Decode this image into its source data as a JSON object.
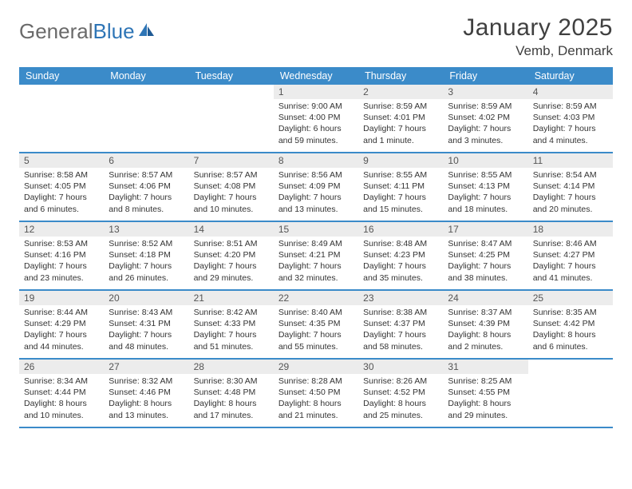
{
  "logo": {
    "text_general": "General",
    "text_blue": "Blue"
  },
  "title": {
    "month": "January 2025",
    "location": "Vemb, Denmark"
  },
  "colors": {
    "header_bg": "#3b8bc9",
    "daynum_bg": "#ececec",
    "logo_gray": "#6a6a6a",
    "logo_blue": "#2e75b6"
  },
  "day_names": [
    "Sunday",
    "Monday",
    "Tuesday",
    "Wednesday",
    "Thursday",
    "Friday",
    "Saturday"
  ],
  "weeks": [
    [
      {
        "empty": true
      },
      {
        "empty": true
      },
      {
        "empty": true
      },
      {
        "day": "1",
        "sunrise": "Sunrise: 9:00 AM",
        "sunset": "Sunset: 4:00 PM",
        "daylight": "Daylight: 6 hours and 59 minutes."
      },
      {
        "day": "2",
        "sunrise": "Sunrise: 8:59 AM",
        "sunset": "Sunset: 4:01 PM",
        "daylight": "Daylight: 7 hours and 1 minute."
      },
      {
        "day": "3",
        "sunrise": "Sunrise: 8:59 AM",
        "sunset": "Sunset: 4:02 PM",
        "daylight": "Daylight: 7 hours and 3 minutes."
      },
      {
        "day": "4",
        "sunrise": "Sunrise: 8:59 AM",
        "sunset": "Sunset: 4:03 PM",
        "daylight": "Daylight: 7 hours and 4 minutes."
      }
    ],
    [
      {
        "day": "5",
        "sunrise": "Sunrise: 8:58 AM",
        "sunset": "Sunset: 4:05 PM",
        "daylight": "Daylight: 7 hours and 6 minutes."
      },
      {
        "day": "6",
        "sunrise": "Sunrise: 8:57 AM",
        "sunset": "Sunset: 4:06 PM",
        "daylight": "Daylight: 7 hours and 8 minutes."
      },
      {
        "day": "7",
        "sunrise": "Sunrise: 8:57 AM",
        "sunset": "Sunset: 4:08 PM",
        "daylight": "Daylight: 7 hours and 10 minutes."
      },
      {
        "day": "8",
        "sunrise": "Sunrise: 8:56 AM",
        "sunset": "Sunset: 4:09 PM",
        "daylight": "Daylight: 7 hours and 13 minutes."
      },
      {
        "day": "9",
        "sunrise": "Sunrise: 8:55 AM",
        "sunset": "Sunset: 4:11 PM",
        "daylight": "Daylight: 7 hours and 15 minutes."
      },
      {
        "day": "10",
        "sunrise": "Sunrise: 8:55 AM",
        "sunset": "Sunset: 4:13 PM",
        "daylight": "Daylight: 7 hours and 18 minutes."
      },
      {
        "day": "11",
        "sunrise": "Sunrise: 8:54 AM",
        "sunset": "Sunset: 4:14 PM",
        "daylight": "Daylight: 7 hours and 20 minutes."
      }
    ],
    [
      {
        "day": "12",
        "sunrise": "Sunrise: 8:53 AM",
        "sunset": "Sunset: 4:16 PM",
        "daylight": "Daylight: 7 hours and 23 minutes."
      },
      {
        "day": "13",
        "sunrise": "Sunrise: 8:52 AM",
        "sunset": "Sunset: 4:18 PM",
        "daylight": "Daylight: 7 hours and 26 minutes."
      },
      {
        "day": "14",
        "sunrise": "Sunrise: 8:51 AM",
        "sunset": "Sunset: 4:20 PM",
        "daylight": "Daylight: 7 hours and 29 minutes."
      },
      {
        "day": "15",
        "sunrise": "Sunrise: 8:49 AM",
        "sunset": "Sunset: 4:21 PM",
        "daylight": "Daylight: 7 hours and 32 minutes."
      },
      {
        "day": "16",
        "sunrise": "Sunrise: 8:48 AM",
        "sunset": "Sunset: 4:23 PM",
        "daylight": "Daylight: 7 hours and 35 minutes."
      },
      {
        "day": "17",
        "sunrise": "Sunrise: 8:47 AM",
        "sunset": "Sunset: 4:25 PM",
        "daylight": "Daylight: 7 hours and 38 minutes."
      },
      {
        "day": "18",
        "sunrise": "Sunrise: 8:46 AM",
        "sunset": "Sunset: 4:27 PM",
        "daylight": "Daylight: 7 hours and 41 minutes."
      }
    ],
    [
      {
        "day": "19",
        "sunrise": "Sunrise: 8:44 AM",
        "sunset": "Sunset: 4:29 PM",
        "daylight": "Daylight: 7 hours and 44 minutes."
      },
      {
        "day": "20",
        "sunrise": "Sunrise: 8:43 AM",
        "sunset": "Sunset: 4:31 PM",
        "daylight": "Daylight: 7 hours and 48 minutes."
      },
      {
        "day": "21",
        "sunrise": "Sunrise: 8:42 AM",
        "sunset": "Sunset: 4:33 PM",
        "daylight": "Daylight: 7 hours and 51 minutes."
      },
      {
        "day": "22",
        "sunrise": "Sunrise: 8:40 AM",
        "sunset": "Sunset: 4:35 PM",
        "daylight": "Daylight: 7 hours and 55 minutes."
      },
      {
        "day": "23",
        "sunrise": "Sunrise: 8:38 AM",
        "sunset": "Sunset: 4:37 PM",
        "daylight": "Daylight: 7 hours and 58 minutes."
      },
      {
        "day": "24",
        "sunrise": "Sunrise: 8:37 AM",
        "sunset": "Sunset: 4:39 PM",
        "daylight": "Daylight: 8 hours and 2 minutes."
      },
      {
        "day": "25",
        "sunrise": "Sunrise: 8:35 AM",
        "sunset": "Sunset: 4:42 PM",
        "daylight": "Daylight: 8 hours and 6 minutes."
      }
    ],
    [
      {
        "day": "26",
        "sunrise": "Sunrise: 8:34 AM",
        "sunset": "Sunset: 4:44 PM",
        "daylight": "Daylight: 8 hours and 10 minutes."
      },
      {
        "day": "27",
        "sunrise": "Sunrise: 8:32 AM",
        "sunset": "Sunset: 4:46 PM",
        "daylight": "Daylight: 8 hours and 13 minutes."
      },
      {
        "day": "28",
        "sunrise": "Sunrise: 8:30 AM",
        "sunset": "Sunset: 4:48 PM",
        "daylight": "Daylight: 8 hours and 17 minutes."
      },
      {
        "day": "29",
        "sunrise": "Sunrise: 8:28 AM",
        "sunset": "Sunset: 4:50 PM",
        "daylight": "Daylight: 8 hours and 21 minutes."
      },
      {
        "day": "30",
        "sunrise": "Sunrise: 8:26 AM",
        "sunset": "Sunset: 4:52 PM",
        "daylight": "Daylight: 8 hours and 25 minutes."
      },
      {
        "day": "31",
        "sunrise": "Sunrise: 8:25 AM",
        "sunset": "Sunset: 4:55 PM",
        "daylight": "Daylight: 8 hours and 29 minutes."
      },
      {
        "empty": true
      }
    ]
  ]
}
